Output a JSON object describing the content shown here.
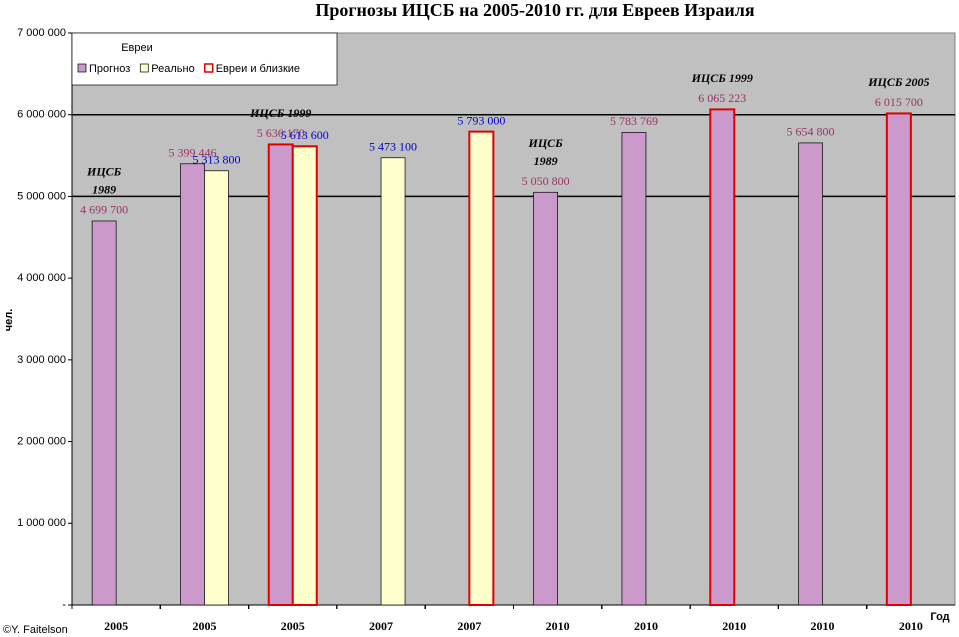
{
  "chart_data": {
    "type": "bar",
    "title": "Прогнозы ИЦСБ на 2005-2010 гг. для Евреев Израиля",
    "y_label": "чел.",
    "x_label": "Год",
    "credit": "©Y. Faitelson",
    "legend_title": "Евреи",
    "categories": [
      "2005",
      "2005",
      "2005",
      "2007",
      "2007",
      "2010",
      "2010",
      "2010",
      "2010",
      "2010"
    ],
    "series": [
      {
        "name": "Прогноз",
        "color": "#cc99cc",
        "label_color": "#993366",
        "values": [
          4699700,
          5399446,
          5636170,
          null,
          null,
          5050800,
          5783769,
          6065223,
          5654800,
          6015700
        ],
        "value_labels": [
          "4 699 700",
          "5 399 446",
          "5 636 170",
          null,
          null,
          "5 050 800",
          "5 783 769",
          "6 065 223",
          "5 654 800",
          "6 015 700"
        ]
      },
      {
        "name": "Реально",
        "color": "#ffffcc",
        "label_color": "#0000cc",
        "values": [
          null,
          5313800,
          5613600,
          5473100,
          5793000,
          null,
          null,
          null,
          null,
          null
        ],
        "value_labels": [
          null,
          "5 313 800",
          "5 613 600",
          "5 473 100",
          "5 793 000",
          null,
          null,
          null,
          null,
          null
        ]
      }
    ],
    "highlight": {
      "name": "Евреи и близкие",
      "color": "#e00000",
      "categories": [
        2,
        4,
        7,
        9
      ]
    },
    "annotations": [
      {
        "at": 0,
        "lines": [
          "ИЦСБ",
          "1989"
        ]
      },
      {
        "at": 2,
        "lines": [
          "ИЦСБ 1999"
        ]
      },
      {
        "at": 5,
        "lines": [
          "ИЦСБ",
          "1989"
        ]
      },
      {
        "at": 7,
        "lines": [
          "ИЦСБ 1999"
        ]
      },
      {
        "at": 9,
        "lines": [
          "ИЦСБ 2005"
        ]
      }
    ],
    "ylim": [
      0,
      7000000
    ],
    "yticks": [
      {
        "value": 0,
        "label": "-"
      },
      {
        "value": 1000000,
        "label": "1 000 000"
      },
      {
        "value": 2000000,
        "label": "2 000 000"
      },
      {
        "value": 3000000,
        "label": "3 000 000"
      },
      {
        "value": 4000000,
        "label": "4 000 000"
      },
      {
        "value": 5000000,
        "label": "5 000 000"
      },
      {
        "value": 6000000,
        "label": "6 000 000"
      },
      {
        "value": 7000000,
        "label": "7 000 000"
      }
    ],
    "grid_values": [
      5000000,
      6000000
    ],
    "plot_color": "#c0c0c0"
  }
}
